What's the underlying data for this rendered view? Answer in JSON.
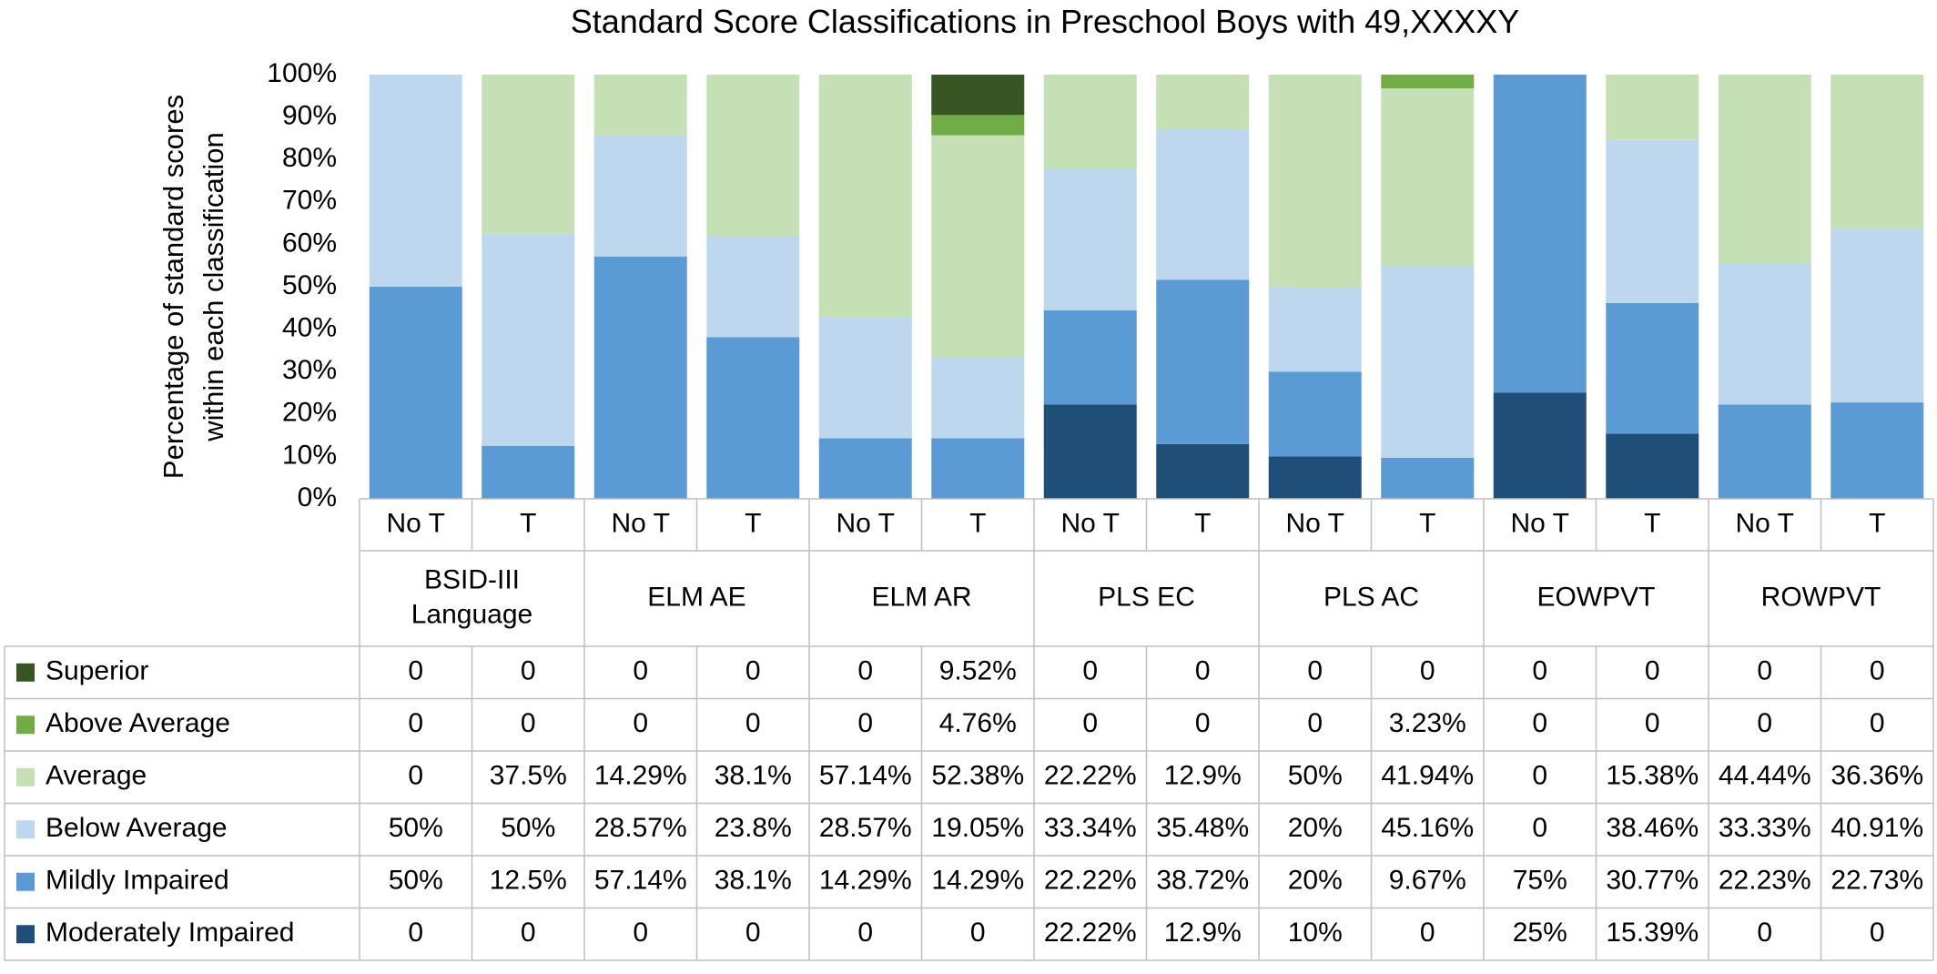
{
  "chart_data": {
    "type": "bar",
    "stacked": true,
    "title": "Standard Score Classifications in Preschool Boys with 49,XXXXY",
    "ylabel_lines": [
      "Percentage of standard scores",
      "within each classification"
    ],
    "ylim": [
      0,
      100
    ],
    "yticks": [
      "0%",
      "10%",
      "20%",
      "30%",
      "40%",
      "50%",
      "60%",
      "70%",
      "80%",
      "90%",
      "100%"
    ],
    "grid": false,
    "legend": "table-left",
    "groups": [
      {
        "label_lines": [
          "BSID-III",
          "Language"
        ]
      },
      {
        "label_lines": [
          "ELM AE"
        ]
      },
      {
        "label_lines": [
          "ELM AR"
        ]
      },
      {
        "label_lines": [
          "PLS EC"
        ]
      },
      {
        "label_lines": [
          "PLS AC"
        ]
      },
      {
        "label_lines": [
          "EOWPVT"
        ]
      },
      {
        "label_lines": [
          "ROWPVT"
        ]
      }
    ],
    "categories": [
      "No T",
      "T",
      "No T",
      "T",
      "No T",
      "T",
      "No T",
      "T",
      "No T",
      "T",
      "No T",
      "T",
      "No T",
      "T"
    ],
    "series": [
      {
        "name": "Superior",
        "color": "#375623",
        "values": [
          0,
          0,
          0,
          0,
          0,
          9.52,
          0,
          0,
          0,
          0,
          0,
          0,
          0,
          0
        ],
        "labels": [
          "0",
          "0",
          "0",
          "0",
          "0",
          "9.52%",
          "0",
          "0",
          "0",
          "0",
          "0",
          "0",
          "0",
          "0"
        ]
      },
      {
        "name": "Above Average",
        "color": "#70AD47",
        "values": [
          0,
          0,
          0,
          0,
          0,
          4.76,
          0,
          0,
          0,
          3.23,
          0,
          0,
          0,
          0
        ],
        "labels": [
          "0",
          "0",
          "0",
          "0",
          "0",
          "4.76%",
          "0",
          "0",
          "0",
          "3.23%",
          "0",
          "0",
          "0",
          "0"
        ]
      },
      {
        "name": "Average",
        "color": "#C5E0B4",
        "values": [
          0,
          37.5,
          14.29,
          38.1,
          57.14,
          52.38,
          22.22,
          12.9,
          50,
          41.94,
          0,
          15.38,
          44.44,
          36.36
        ],
        "labels": [
          "0",
          "37.5%",
          "14.29%",
          "38.1%",
          "57.14%",
          "52.38%",
          "22.22%",
          "12.9%",
          "50%",
          "41.94%",
          "0",
          "15.38%",
          "44.44%",
          "36.36%"
        ]
      },
      {
        "name": "Below Average",
        "color": "#BDD7EE",
        "values": [
          50,
          50,
          28.57,
          23.8,
          28.57,
          19.05,
          33.34,
          35.48,
          20,
          45.16,
          0,
          38.46,
          33.33,
          40.91
        ],
        "labels": [
          "50%",
          "50%",
          "28.57%",
          "23.8%",
          "28.57%",
          "19.05%",
          "33.34%",
          "35.48%",
          "20%",
          "45.16%",
          "0",
          "38.46%",
          "33.33%",
          "40.91%"
        ]
      },
      {
        "name": "Mildly Impaired",
        "color": "#5B9BD5",
        "values": [
          50,
          12.5,
          57.14,
          38.1,
          14.29,
          14.29,
          22.22,
          38.72,
          20,
          9.67,
          75,
          30.77,
          22.23,
          22.73
        ],
        "labels": [
          "50%",
          "12.5%",
          "57.14%",
          "38.1%",
          "14.29%",
          "14.29%",
          "22.22%",
          "38.72%",
          "20%",
          "9.67%",
          "75%",
          "30.77%",
          "22.23%",
          "22.73%"
        ]
      },
      {
        "name": "Moderately Impaired",
        "color": "#1F4E79",
        "values": [
          0,
          0,
          0,
          0,
          0,
          0,
          22.22,
          12.9,
          10,
          0,
          25,
          15.39,
          0,
          0
        ],
        "labels": [
          "0",
          "0",
          "0",
          "0",
          "0",
          "0",
          "22.22%",
          "12.9%",
          "10%",
          "0",
          "25%",
          "15.39%",
          "0",
          "0"
        ]
      }
    ],
    "stack_order_bottom_to_top": [
      "Moderately Impaired",
      "Mildly Impaired",
      "Below Average",
      "Average",
      "Above Average",
      "Superior"
    ]
  }
}
